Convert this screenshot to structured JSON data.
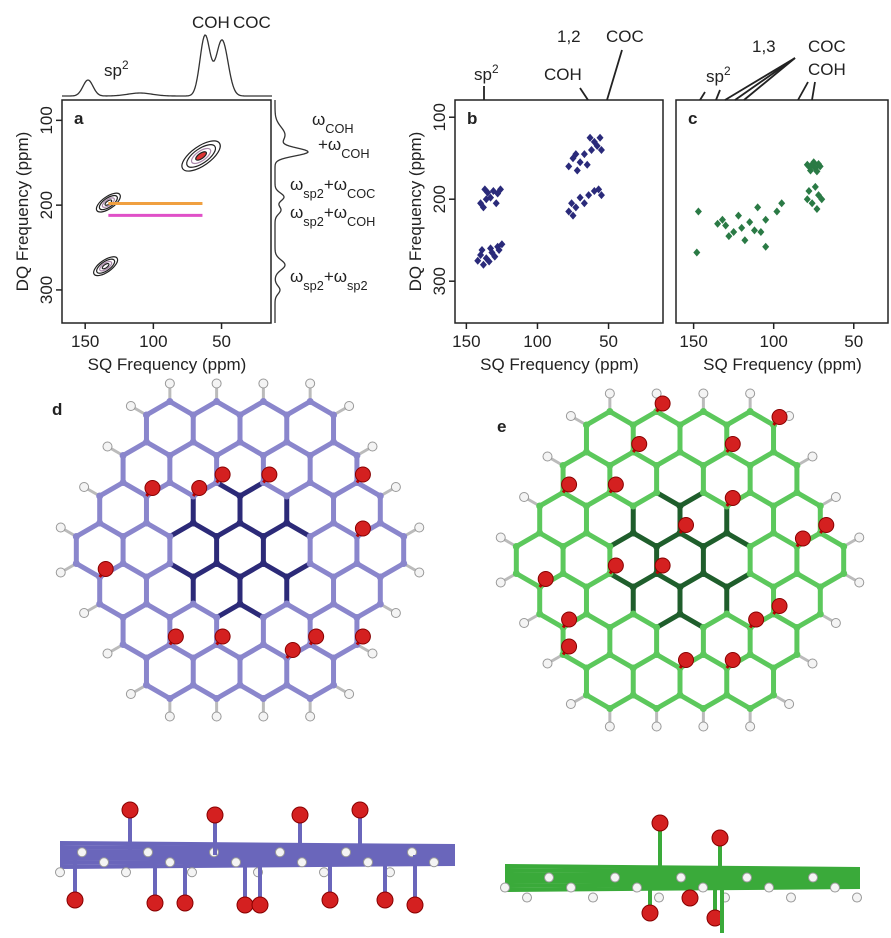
{
  "chart_data": [
    {
      "type": "contour",
      "label": "a",
      "xlabel": "SQ Frequency (ppm)",
      "ylabel": "DQ Frequency (ppm)",
      "xlim": [
        167,
        13
      ],
      "ylim": [
        339,
        76
      ],
      "xticks": [
        150,
        100,
        50
      ],
      "yticks": [
        100,
        200,
        300
      ],
      "contours": {
        "x": [
          65,
          133,
          135
        ],
        "y": [
          142,
          197,
          272
        ]
      },
      "correlations": [
        {
          "x": [
            133,
            64
          ],
          "y": 198,
          "color": "#f0a040"
        },
        {
          "x": [
            133,
            64
          ],
          "y": 212,
          "color": "#e050c8"
        }
      ],
      "top_annotations": [
        [
          {
            "text": "sp"
          },
          {
            "text": "2",
            "sup": true
          }
        ],
        [
          {
            "text": "COH"
          }
        ],
        [
          {
            "text": "COC"
          }
        ]
      ],
      "right_annotations": [
        [
          {
            "text": "ω"
          },
          {
            "text": "COH",
            "sub": true
          }
        ],
        [
          {
            "text": "+ω"
          },
          {
            "text": "COH",
            "sub": true
          }
        ],
        [
          {
            "text": "ω"
          },
          {
            "text": "sp2",
            "sub": true
          },
          {
            "text": "+ω"
          },
          {
            "text": "COC",
            "sub": true
          }
        ],
        [
          {
            "text": "ω"
          },
          {
            "text": "sp2",
            "sub": true
          },
          {
            "text": "+ω"
          },
          {
            "text": "COH",
            "sub": true
          }
        ],
        [
          {
            "text": "ω"
          },
          {
            "text": "sp2",
            "sub": true
          },
          {
            "text": "+ω"
          },
          {
            "text": "sp2",
            "sub": true
          }
        ]
      ]
    },
    {
      "type": "scatter",
      "label": "b",
      "xlabel": "SQ Frequency (ppm)",
      "ylabel": "DQ Frequency (ppm)",
      "color": "#2a2a7a",
      "xlim": [
        158,
        11
      ],
      "ylim": [
        351,
        79
      ],
      "xticks": [
        150,
        100,
        50
      ],
      "yticks": [
        100,
        200,
        300
      ],
      "x": [
        140,
        138,
        136,
        133,
        131,
        128,
        126,
        135,
        129,
        137,
        142,
        140,
        138,
        136,
        134,
        132,
        130,
        128,
        127,
        125,
        139,
        133,
        78,
        75,
        72,
        70,
        67,
        65,
        62,
        60,
        58,
        56,
        55,
        63,
        73,
        78,
        76,
        73,
        70,
        67,
        64,
        60,
        57,
        55,
        75
      ],
      "y": [
        205,
        210,
        200,
        198,
        190,
        193,
        188,
        192,
        205,
        188,
        275,
        268,
        280,
        272,
        276,
        265,
        270,
        258,
        262,
        255,
        262,
        260,
        160,
        150,
        165,
        155,
        145,
        158,
        140,
        130,
        135,
        125,
        140,
        125,
        145,
        215,
        205,
        210,
        198,
        205,
        195,
        190,
        188,
        195,
        220
      ],
      "top_annotations": [
        [
          {
            "text": "sp"
          },
          {
            "text": "2",
            "sup": true
          }
        ],
        [
          {
            "text": "COH"
          }
        ],
        [
          {
            "text": "1,2"
          }
        ],
        [
          {
            "text": "COC"
          }
        ]
      ]
    },
    {
      "type": "scatter",
      "label": "c",
      "xlabel": "SQ Frequency (ppm)",
      "color": "#2a7a45",
      "xlim": [
        161,
        28
      ],
      "ylim": [
        351,
        79
      ],
      "xticks": [
        150,
        100,
        50
      ],
      "x": [
        78,
        76,
        74,
        72,
        77,
        75,
        73,
        71,
        79,
        74,
        78,
        72,
        76,
        73,
        70,
        79,
        95,
        98,
        110,
        105,
        115,
        120,
        125,
        130,
        135,
        128,
        118,
        112,
        132,
        108,
        122,
        147,
        148,
        105
      ],
      "y": [
        160,
        158,
        162,
        157,
        165,
        155,
        166,
        160,
        158,
        185,
        190,
        195,
        205,
        212,
        200,
        200,
        205,
        215,
        210,
        225,
        228,
        235,
        240,
        232,
        230,
        245,
        250,
        238,
        225,
        240,
        220,
        215,
        265,
        258
      ],
      "top_annotations": [
        [
          {
            "text": "sp"
          },
          {
            "text": "2",
            "sup": true
          }
        ],
        [
          {
            "text": "1,3"
          }
        ],
        [
          {
            "text": "COC"
          }
        ],
        [
          {
            "text": "COH"
          }
        ]
      ]
    }
  ],
  "panels": [
    {
      "label": "d"
    },
    {
      "label": "e"
    }
  ]
}
